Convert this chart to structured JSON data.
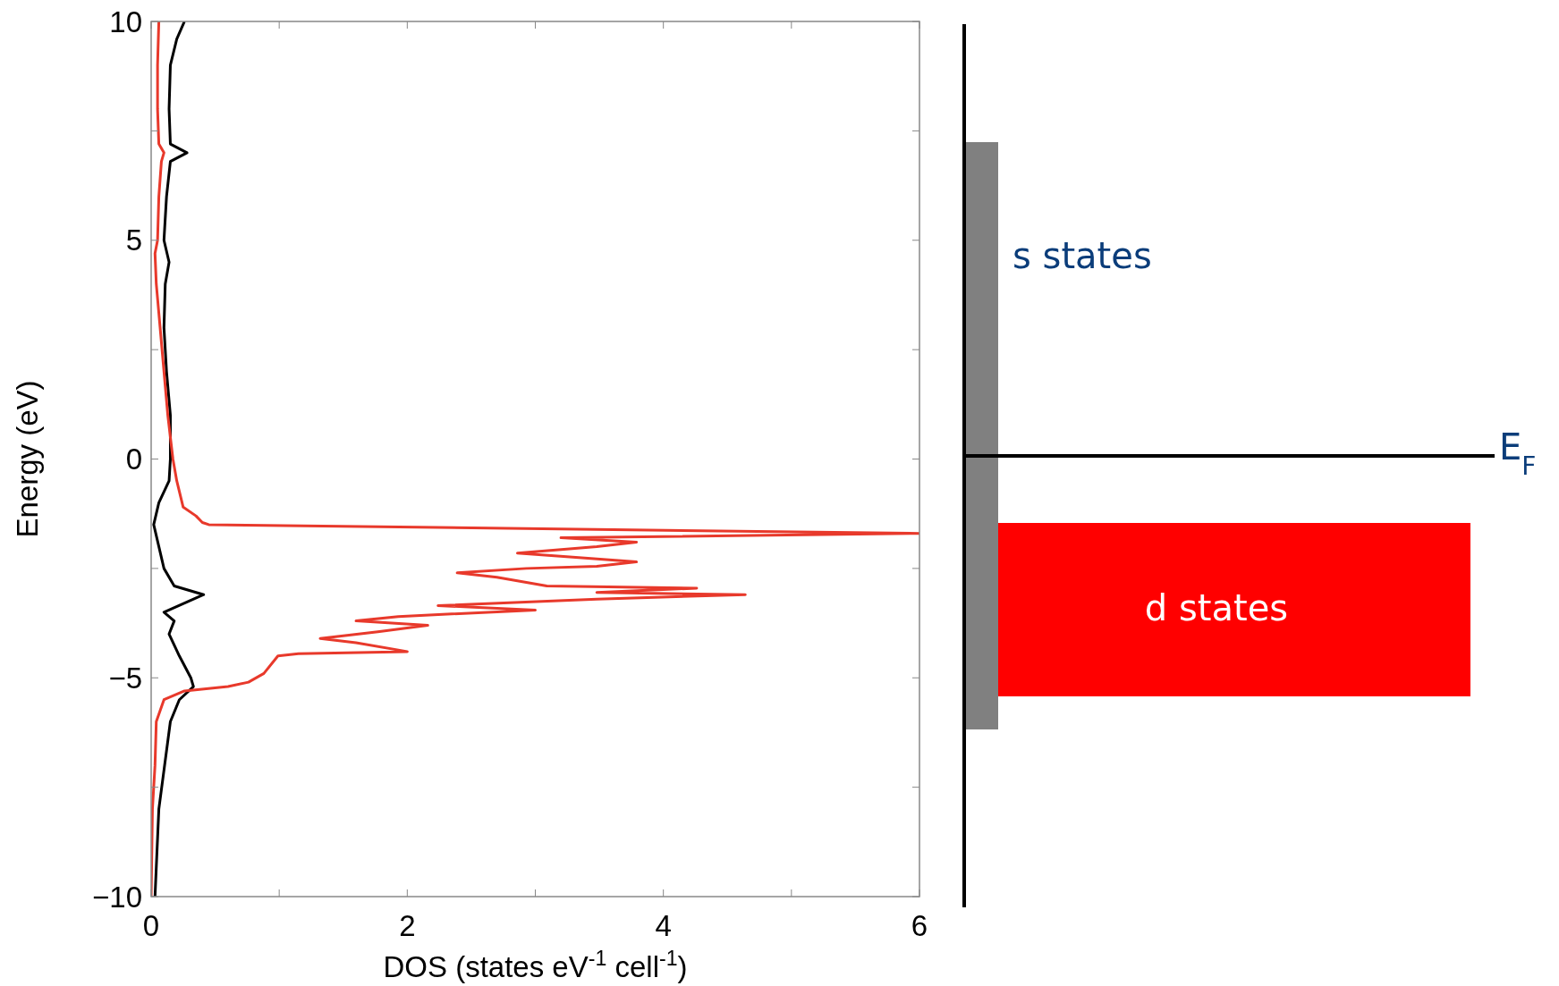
{
  "chart_data": [
    {
      "type": "line",
      "xlabel": "DOS (states eV$^{-1}$ cell$^{-1}$)",
      "ylabel": "Energy (eV)",
      "xlim": [
        0,
        6
      ],
      "ylim": [
        -10,
        10
      ],
      "xticks": [
        0,
        {
          "value": 1,
          "label": null
        },
        2,
        {
          "value": 3,
          "label": null
        },
        4,
        {
          "value": 5,
          "label": null
        },
        6
      ],
      "yticks": [
        {
          "value": -10,
          "label": "−10"
        },
        {
          "value": -7.5,
          "label": null
        },
        {
          "value": -5,
          "label": "−5"
        },
        {
          "value": -2.5,
          "label": null
        },
        0,
        {
          "value": 2.5,
          "label": null
        },
        5,
        {
          "value": 7.5,
          "label": null
        },
        10
      ],
      "grid": false,
      "marker": "none",
      "line_style": "solid",
      "series": [
        {
          "color": "#000000",
          "x": [
            0.03,
            0.06,
            0.15,
            0.22,
            0.33,
            0.31,
            0.22,
            0.14,
            0.18,
            0.1,
            0.41,
            0.18,
            0.1,
            0.06,
            0.02,
            0.06,
            0.14,
            0.15,
            0.15,
            0.12,
            0.1,
            0.11,
            0.14,
            0.1,
            0.12,
            0.15,
            0.28,
            0.15,
            0.14,
            0.15,
            0.2,
            0.26
          ],
          "values": [
            -10,
            -8,
            -6,
            -5.5,
            -5.2,
            -5,
            -4.5,
            -4,
            -3.7,
            -3.5,
            -3.1,
            -2.9,
            -2.5,
            -2,
            -1.5,
            -1,
            -0.5,
            0,
            1,
            2,
            3,
            4,
            4.5,
            5,
            6,
            6.8,
            7,
            7.2,
            8,
            9,
            9.6,
            10
          ]
        },
        {
          "color": "#e8392b",
          "x": [
            0,
            0.01,
            0.03,
            0.04,
            0.1,
            0.26,
            0.6,
            0.76,
            0.88,
            0.99,
            1.15,
            2.0,
            1.6,
            1.32,
            1.77,
            2.16,
            1.6,
            1.93,
            3.0,
            2.24,
            3.48,
            4.64,
            3.48,
            4.26,
            3.09,
            2.7,
            2.39,
            2.93,
            3.48,
            3.79,
            3.34,
            2.86,
            3.48,
            3.79,
            3.2,
            6.0,
            0.45,
            0.4,
            0.35,
            0.25,
            0.2,
            0.17,
            0.13,
            0.1,
            0.07,
            0.04,
            0.03,
            0.05,
            0.06,
            0.08,
            0.1,
            0.06,
            0.05,
            0.05,
            0.06
          ],
          "values": [
            -10,
            -8,
            -7,
            -6,
            -5.5,
            -5.3,
            -5.2,
            -5.1,
            -4.9,
            -4.5,
            -4.45,
            -4.4,
            -4.2,
            -4.1,
            -3.95,
            -3.8,
            -3.7,
            -3.6,
            -3.45,
            -3.35,
            -3.2,
            -3.1,
            -3.05,
            -2.95,
            -2.9,
            -2.7,
            -2.6,
            -2.5,
            -2.45,
            -2.35,
            -2.25,
            -2.15,
            -2,
            -1.9,
            -1.8,
            -1.7,
            -1.5,
            -1.45,
            -1.3,
            -1.1,
            -0.5,
            0,
            1,
            2,
            3,
            4,
            4.7,
            5,
            6,
            6.8,
            7,
            7.2,
            8,
            9,
            10
          ]
        }
      ]
    },
    {
      "type": "other",
      "annotations": [
        "s states",
        "d states",
        "E$_{F}$"
      ]
    }
  ]
}
